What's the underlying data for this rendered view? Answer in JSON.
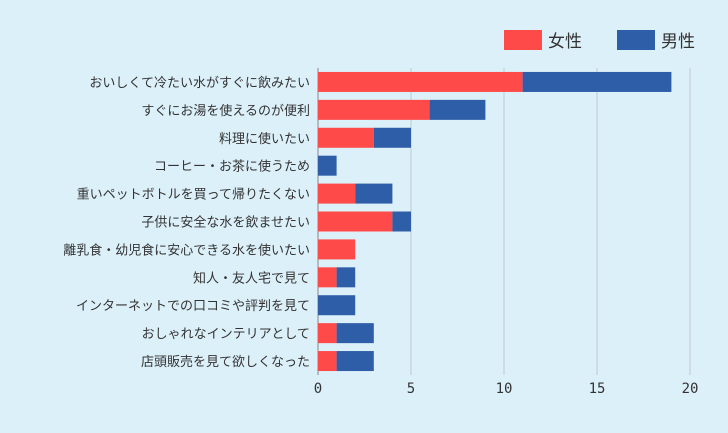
{
  "chart_data": {
    "type": "bar",
    "orientation": "horizontal",
    "stacked": true,
    "categories": [
      "おいしくて冷たい水がすぐに飲みたい",
      "すぐにお湯を使えるのが便利",
      "料理に使いたい",
      "コーヒー・お茶に使うため",
      "重いペットボトルを買って帰りたくない",
      "子供に安全な水を飲ませたい",
      "離乳食・幼児食に安心できる水を使いたい",
      "知人・友人宅で見て",
      "インターネットでの口コミや評判を見て",
      "おしゃれなインテリアとして",
      "店頭販売を見て欲しくなった"
    ],
    "series": [
      {
        "name": "女性",
        "color": "#ff4a4a",
        "values": [
          11,
          6,
          3,
          0,
          2,
          4,
          2,
          1,
          0,
          1,
          1
        ]
      },
      {
        "name": "男性",
        "color": "#2f5ea8",
        "values": [
          8,
          3,
          2,
          1,
          2,
          1,
          0,
          1,
          2,
          2,
          2
        ]
      }
    ],
    "xlim": [
      0,
      20
    ],
    "xticks": [
      0,
      5,
      10,
      15,
      20
    ],
    "grid": true,
    "legend_position": "top-right"
  }
}
